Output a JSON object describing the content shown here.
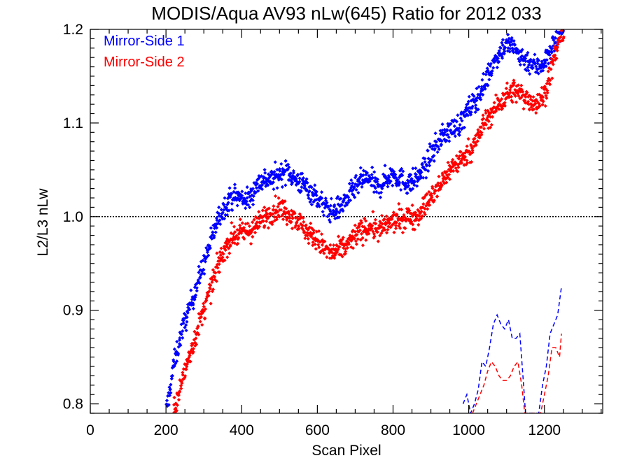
{
  "chart_data": {
    "type": "scatter",
    "title": "MODIS/Aqua AV93 nLw(645) Ratio for 2012 033",
    "xlabel": "Scan Pixel",
    "ylabel": "L2/L3 nLw",
    "xlim": [
      0,
      1354
    ],
    "ylim": [
      0.79,
      1.2
    ],
    "xticks": [
      "0",
      "200",
      "400",
      "600",
      "800",
      "1000",
      "1200"
    ],
    "xtick_values": [
      0,
      200,
      400,
      600,
      800,
      1000,
      1200
    ],
    "yticks": [
      "0.8",
      "0.9",
      "1.0",
      "1.1",
      "1.2"
    ],
    "ytick_values": [
      0.8,
      0.9,
      1.0,
      1.1,
      1.2
    ],
    "reference_line": {
      "y": 1.0,
      "style": "dotted",
      "color": "#000000"
    },
    "legend_position": "top-left",
    "series": [
      {
        "name": "Mirror-Side 1",
        "color": "#0000ff",
        "marker": "diamond",
        "profile": [
          [
            200,
            0.79
          ],
          [
            220,
            0.84
          ],
          [
            240,
            0.875
          ],
          [
            260,
            0.9
          ],
          [
            280,
            0.925
          ],
          [
            300,
            0.95
          ],
          [
            320,
            0.975
          ],
          [
            340,
            1.0
          ],
          [
            360,
            1.015
          ],
          [
            380,
            1.022
          ],
          [
            400,
            1.02
          ],
          [
            420,
            1.018
          ],
          [
            440,
            1.035
          ],
          [
            460,
            1.04
          ],
          [
            480,
            1.04
          ],
          [
            500,
            1.045
          ],
          [
            520,
            1.05
          ],
          [
            540,
            1.04
          ],
          [
            560,
            1.035
          ],
          [
            580,
            1.028
          ],
          [
            600,
            1.02
          ],
          [
            620,
            1.01
          ],
          [
            640,
            1.005
          ],
          [
            660,
            1.01
          ],
          [
            680,
            1.02
          ],
          [
            700,
            1.03
          ],
          [
            720,
            1.04
          ],
          [
            740,
            1.04
          ],
          [
            760,
            1.03
          ],
          [
            780,
            1.04
          ],
          [
            800,
            1.045
          ],
          [
            820,
            1.04
          ],
          [
            840,
            1.035
          ],
          [
            860,
            1.04
          ],
          [
            880,
            1.05
          ],
          [
            900,
            1.065
          ],
          [
            920,
            1.08
          ],
          [
            940,
            1.09
          ],
          [
            960,
            1.095
          ],
          [
            980,
            1.1
          ],
          [
            1000,
            1.115
          ],
          [
            1020,
            1.125
          ],
          [
            1040,
            1.14
          ],
          [
            1060,
            1.16
          ],
          [
            1080,
            1.175
          ],
          [
            1100,
            1.185
          ],
          [
            1120,
            1.18
          ],
          [
            1140,
            1.17
          ],
          [
            1160,
            1.165
          ],
          [
            1180,
            1.16
          ],
          [
            1200,
            1.165
          ],
          [
            1220,
            1.18
          ],
          [
            1240,
            1.195
          ],
          [
            1250,
            1.2
          ]
        ],
        "dashed": [
          [
            985,
            0.8
          ],
          [
            995,
            0.81
          ],
          [
            1005,
            0.79
          ],
          [
            1015,
            0.8
          ],
          [
            1025,
            0.815
          ],
          [
            1035,
            0.845
          ],
          [
            1045,
            0.84
          ],
          [
            1055,
            0.86
          ],
          [
            1065,
            0.885
          ],
          [
            1075,
            0.895
          ],
          [
            1085,
            0.885
          ],
          [
            1095,
            0.88
          ],
          [
            1105,
            0.89
          ],
          [
            1115,
            0.87
          ],
          [
            1125,
            0.87
          ],
          [
            1135,
            0.875
          ],
          [
            1145,
            0.82
          ],
          [
            1150,
            0.79
          ],
          [
            1185,
            0.79
          ],
          [
            1195,
            0.82
          ],
          [
            1205,
            0.84
          ],
          [
            1215,
            0.875
          ],
          [
            1225,
            0.885
          ],
          [
            1235,
            0.895
          ],
          [
            1245,
            0.925
          ]
        ]
      },
      {
        "name": "Mirror-Side 2",
        "color": "#ff0000",
        "marker": "diamond",
        "profile": [
          [
            220,
            0.79
          ],
          [
            240,
            0.82
          ],
          [
            260,
            0.85
          ],
          [
            280,
            0.875
          ],
          [
            300,
            0.9
          ],
          [
            320,
            0.925
          ],
          [
            340,
            0.95
          ],
          [
            360,
            0.97
          ],
          [
            380,
            0.98
          ],
          [
            400,
            0.982
          ],
          [
            420,
            0.985
          ],
          [
            440,
            0.99
          ],
          [
            460,
            1.0
          ],
          [
            480,
            1.005
          ],
          [
            500,
            1.01
          ],
          [
            520,
            1.005
          ],
          [
            540,
            1.0
          ],
          [
            560,
            0.99
          ],
          [
            580,
            0.982
          ],
          [
            600,
            0.975
          ],
          [
            620,
            0.965
          ],
          [
            640,
            0.96
          ],
          [
            660,
            0.965
          ],
          [
            680,
            0.97
          ],
          [
            700,
            0.98
          ],
          [
            720,
            0.985
          ],
          [
            740,
            0.99
          ],
          [
            760,
            0.985
          ],
          [
            780,
            0.99
          ],
          [
            800,
            0.995
          ],
          [
            820,
            0.997
          ],
          [
            840,
            1.0
          ],
          [
            860,
            1.0
          ],
          [
            880,
            1.01
          ],
          [
            900,
            1.02
          ],
          [
            920,
            1.03
          ],
          [
            940,
            1.045
          ],
          [
            960,
            1.055
          ],
          [
            980,
            1.06
          ],
          [
            1000,
            1.07
          ],
          [
            1020,
            1.08
          ],
          [
            1040,
            1.1
          ],
          [
            1060,
            1.11
          ],
          [
            1080,
            1.12
          ],
          [
            1100,
            1.13
          ],
          [
            1120,
            1.135
          ],
          [
            1140,
            1.13
          ],
          [
            1160,
            1.125
          ],
          [
            1180,
            1.12
          ],
          [
            1200,
            1.13
          ],
          [
            1220,
            1.16
          ],
          [
            1240,
            1.19
          ],
          [
            1250,
            1.2
          ]
        ],
        "dashed": [
          [
            1010,
            0.79
          ],
          [
            1020,
            0.8
          ],
          [
            1030,
            0.81
          ],
          [
            1040,
            0.82
          ],
          [
            1050,
            0.835
          ],
          [
            1060,
            0.845
          ],
          [
            1070,
            0.84
          ],
          [
            1080,
            0.83
          ],
          [
            1090,
            0.825
          ],
          [
            1100,
            0.825
          ],
          [
            1110,
            0.83
          ],
          [
            1120,
            0.84
          ],
          [
            1130,
            0.845
          ],
          [
            1140,
            0.82
          ],
          [
            1148,
            0.79
          ],
          [
            1190,
            0.79
          ],
          [
            1200,
            0.81
          ],
          [
            1210,
            0.83
          ],
          [
            1220,
            0.86
          ],
          [
            1230,
            0.86
          ],
          [
            1240,
            0.85
          ],
          [
            1245,
            0.875
          ]
        ]
      }
    ]
  }
}
